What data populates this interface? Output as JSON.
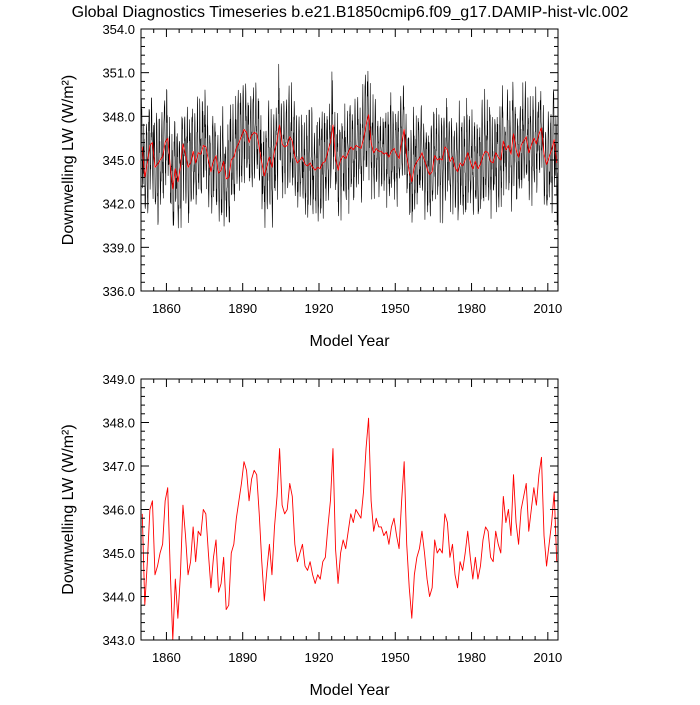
{
  "page": {
    "title": "Global Diagnostics Timeseries b.e21.B1850cmip6.f09_g17.DAMIP-hist-vlc.002"
  },
  "chart_data": [
    {
      "type": "line",
      "title": "",
      "xlabel": "Model Year",
      "ylabel": "Downwelling LW (W/m²)",
      "xlim": [
        1850,
        2014
      ],
      "ylim": [
        336,
        354
      ],
      "xticks": [
        1860,
        1890,
        1920,
        1950,
        1980,
        2010
      ],
      "xtick_labels": [
        "1860",
        "1890",
        "1920",
        "1950",
        "1980",
        "2010"
      ],
      "yticks": [
        336,
        339,
        342,
        345,
        348,
        351,
        354
      ],
      "ytick_labels": [
        "336.0",
        "339.0",
        "342.0",
        "345.0",
        "348.0",
        "351.0",
        "354.0"
      ],
      "grid": false,
      "legend": "none",
      "series": [
        {
          "color": "#000000",
          "resolution": "monthly",
          "x_start": 1850,
          "annual_mean": [
            345.9,
            343.8,
            344.8,
            346.0,
            346.2,
            344.5,
            344.7,
            345.0,
            345.2,
            346.2,
            346.5,
            344.6,
            343.0,
            344.4,
            343.5,
            344.5,
            346.1,
            345.4,
            344.5,
            344.8,
            345.6,
            344.8,
            345.5,
            345.4,
            346.0,
            345.9,
            345.0,
            344.2,
            344.9,
            345.3,
            344.1,
            344.3,
            344.9,
            343.7,
            343.8,
            345.0,
            345.2,
            345.8,
            346.2,
            346.6,
            347.1,
            346.9,
            346.2,
            346.7,
            346.9,
            346.8,
            345.9,
            344.8,
            343.9,
            344.6,
            345.2,
            344.5,
            345.6,
            346.3,
            347.4,
            346.1,
            345.9,
            346.0,
            346.6,
            346.3,
            345.2,
            344.8,
            345.0,
            345.2,
            344.7,
            344.6,
            344.8,
            344.5,
            344.3,
            344.5,
            344.4,
            344.8,
            344.9,
            345.6,
            346.2,
            347.4,
            345.1,
            344.3,
            345.0,
            345.3,
            345.1,
            345.5,
            345.9,
            345.7,
            346.0,
            345.9,
            345.8,
            346.4,
            347.4,
            348.1,
            346.2,
            345.5,
            345.8,
            345.6,
            345.6,
            345.4,
            345.5,
            345.2,
            345.6,
            345.8,
            345.4,
            345.1,
            346.2,
            347.1,
            345.2,
            344.2,
            343.5,
            344.5,
            344.9,
            345.1,
            345.5,
            345.0,
            344.4,
            344.0,
            344.2,
            345.3,
            345.0,
            345.1,
            345.0,
            345.9,
            345.7,
            344.9,
            345.2,
            344.5,
            344.2,
            344.8,
            344.6,
            345.0,
            345.5,
            344.9,
            344.4,
            344.9,
            344.4,
            344.7,
            345.3,
            345.6,
            345.5,
            344.9,
            344.8,
            345.5,
            345.2,
            345.0,
            346.3,
            345.7,
            346.0,
            345.4,
            346.8,
            345.7,
            345.2,
            346.0,
            346.3,
            346.6,
            345.5,
            346.0,
            346.5,
            346.1,
            346.8,
            347.2,
            345.4,
            344.7,
            345.2,
            345.7,
            346.4,
            344.8
          ]
        },
        {
          "color": "#ff0000",
          "resolution": "annual",
          "x_start": 1850,
          "values": [
            345.9,
            343.8,
            344.8,
            346.0,
            346.2,
            344.5,
            344.7,
            345.0,
            345.2,
            346.2,
            346.5,
            344.6,
            343.0,
            344.4,
            343.5,
            344.5,
            346.1,
            345.4,
            344.5,
            344.8,
            345.6,
            344.8,
            345.5,
            345.4,
            346.0,
            345.9,
            345.0,
            344.2,
            344.9,
            345.3,
            344.1,
            344.3,
            344.9,
            343.7,
            343.8,
            345.0,
            345.2,
            345.8,
            346.2,
            346.6,
            347.1,
            346.9,
            346.2,
            346.7,
            346.9,
            346.8,
            345.9,
            344.8,
            343.9,
            344.6,
            345.2,
            344.5,
            345.6,
            346.3,
            347.4,
            346.1,
            345.9,
            346.0,
            346.6,
            346.3,
            345.2,
            344.8,
            345.0,
            345.2,
            344.7,
            344.6,
            344.8,
            344.5,
            344.3,
            344.5,
            344.4,
            344.8,
            344.9,
            345.6,
            346.2,
            347.4,
            345.1,
            344.3,
            345.0,
            345.3,
            345.1,
            345.5,
            345.9,
            345.7,
            346.0,
            345.9,
            345.8,
            346.4,
            347.4,
            348.1,
            346.2,
            345.5,
            345.8,
            345.6,
            345.6,
            345.4,
            345.5,
            345.2,
            345.6,
            345.8,
            345.4,
            345.1,
            346.2,
            347.1,
            345.2,
            344.2,
            343.5,
            344.5,
            344.9,
            345.1,
            345.5,
            345.0,
            344.4,
            344.0,
            344.2,
            345.3,
            345.0,
            345.1,
            345.0,
            345.9,
            345.7,
            344.9,
            345.2,
            344.5,
            344.2,
            344.8,
            344.6,
            345.0,
            345.5,
            344.9,
            344.4,
            344.9,
            344.4,
            344.7,
            345.3,
            345.6,
            345.5,
            344.9,
            344.8,
            345.5,
            345.2,
            345.0,
            346.3,
            345.7,
            346.0,
            345.4,
            346.8,
            345.7,
            345.2,
            346.0,
            346.3,
            346.6,
            345.5,
            346.0,
            346.5,
            346.1,
            346.8,
            347.2,
            345.4,
            344.7,
            345.2,
            345.7,
            346.4,
            344.8
          ]
        }
      ]
    },
    {
      "type": "line",
      "title": "",
      "xlabel": "Model Year",
      "ylabel": "Downwelling LW (W/m²)",
      "xlim": [
        1850,
        2014
      ],
      "ylim": [
        343,
        349
      ],
      "xticks": [
        1860,
        1890,
        1920,
        1950,
        1980,
        2010
      ],
      "xtick_labels": [
        "1860",
        "1890",
        "1920",
        "1950",
        "1980",
        "2010"
      ],
      "yticks": [
        343,
        344,
        345,
        346,
        347,
        348,
        349
      ],
      "ytick_labels": [
        "343.0",
        "344.0",
        "345.0",
        "346.0",
        "347.0",
        "348.0",
        "349.0"
      ],
      "grid": false,
      "legend": "none",
      "series": [
        {
          "color": "#ff0000",
          "resolution": "annual",
          "x_start": 1850,
          "values": [
            345.9,
            343.8,
            344.8,
            346.0,
            346.2,
            344.5,
            344.7,
            345.0,
            345.2,
            346.2,
            346.5,
            344.6,
            343.0,
            344.4,
            343.5,
            344.5,
            346.1,
            345.4,
            344.5,
            344.8,
            345.6,
            344.8,
            345.5,
            345.4,
            346.0,
            345.9,
            345.0,
            344.2,
            344.9,
            345.3,
            344.1,
            344.3,
            344.9,
            343.7,
            343.8,
            345.0,
            345.2,
            345.8,
            346.2,
            346.6,
            347.1,
            346.9,
            346.2,
            346.7,
            346.9,
            346.8,
            345.9,
            344.8,
            343.9,
            344.6,
            345.2,
            344.5,
            345.6,
            346.3,
            347.4,
            346.1,
            345.9,
            346.0,
            346.6,
            346.3,
            345.2,
            344.8,
            345.0,
            345.2,
            344.7,
            344.6,
            344.8,
            344.5,
            344.3,
            344.5,
            344.4,
            344.8,
            344.9,
            345.6,
            346.2,
            347.4,
            345.1,
            344.3,
            345.0,
            345.3,
            345.1,
            345.5,
            345.9,
            345.7,
            346.0,
            345.9,
            345.8,
            346.4,
            347.4,
            348.1,
            346.2,
            345.5,
            345.8,
            345.6,
            345.6,
            345.4,
            345.5,
            345.2,
            345.6,
            345.8,
            345.4,
            345.1,
            346.2,
            347.1,
            345.2,
            344.2,
            343.5,
            344.5,
            344.9,
            345.1,
            345.5,
            345.0,
            344.4,
            344.0,
            344.2,
            345.3,
            345.0,
            345.1,
            345.0,
            345.9,
            345.7,
            344.9,
            345.2,
            344.5,
            344.2,
            344.8,
            344.6,
            345.0,
            345.5,
            344.9,
            344.4,
            344.9,
            344.4,
            344.7,
            345.3,
            345.6,
            345.5,
            344.9,
            344.8,
            345.5,
            345.2,
            345.0,
            346.3,
            345.7,
            346.0,
            345.4,
            346.8,
            345.7,
            345.2,
            346.0,
            346.3,
            346.6,
            345.5,
            346.0,
            346.5,
            346.1,
            346.8,
            347.2,
            345.4,
            344.7,
            345.2,
            345.7,
            346.4,
            344.8
          ]
        }
      ]
    }
  ]
}
